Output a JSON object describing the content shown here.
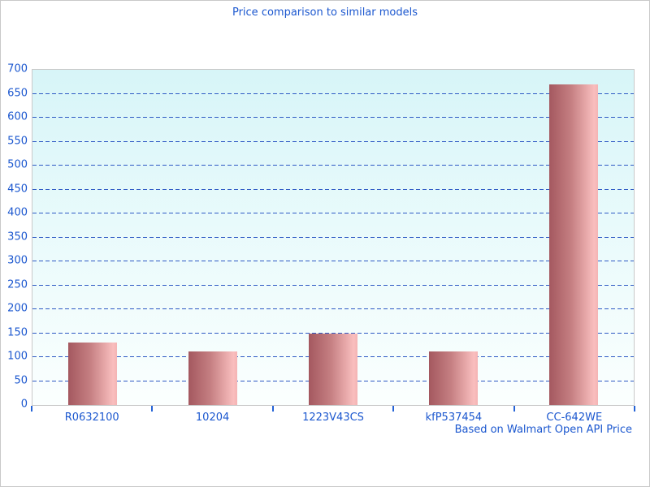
{
  "title": "Price comparison to similar models",
  "footer": "Based on Walmart Open API Price",
  "colors": {
    "text_blue": "#1b57cf",
    "grid_blue": "#2e59c4",
    "tick_blue": "#2463d6",
    "plot_bg_top": "#d7f5f8",
    "plot_bg_bottom": "#fbfffe",
    "bar_dark": "#a4585f",
    "bar_light": "#f9bebe",
    "border_gray": "#c9c9c9"
  },
  "chart_data": {
    "type": "bar",
    "categories": [
      "R0632100",
      "10204",
      "1223V43CS",
      "kfP537454",
      "CC-642WE"
    ],
    "values": [
      130,
      112,
      149,
      112,
      669
    ],
    "title": "Price comparison to similar models",
    "xlabel": "",
    "ylabel": "",
    "ylim": [
      0,
      700
    ],
    "ytick_step": 50,
    "grid": "horizontal-dashed",
    "legend": "none",
    "annotation": "Based on Walmart Open API Price"
  }
}
